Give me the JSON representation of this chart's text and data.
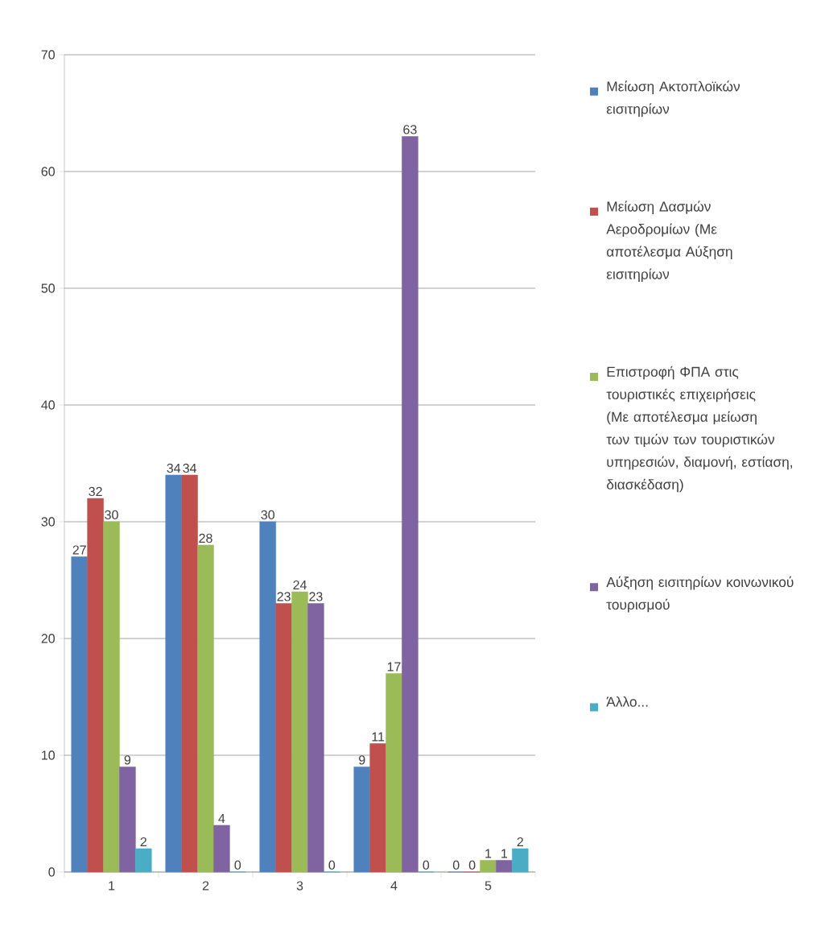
{
  "chart_data": {
    "type": "bar",
    "categories": [
      "1",
      "2",
      "3",
      "4",
      "5"
    ],
    "series": [
      {
        "name": "Μείωση Ακτοπλοϊκών εισιτηρίων",
        "color": "#4f81bd",
        "values": [
          27,
          34,
          30,
          9,
          0
        ]
      },
      {
        "name": "Μείωση Δασμών Αεροδρομίων (Με αποτέλεσμα Αύξηση εισιτηρίων",
        "color": "#c0504d",
        "values": [
          32,
          34,
          23,
          11,
          0
        ]
      },
      {
        "name": "Επιστροφή ΦΠΑ στις τουριστικές επιχειρήσεις (Με αποτέλεσμα μείωση των τιμών των τουριστικών υπηρεσιών, διαμονή, εστίαση, διασκέδαση)",
        "color": "#9bbb59",
        "values": [
          30,
          28,
          24,
          17,
          1
        ]
      },
      {
        "name": "Αύξηση εισιτηρίων κοινωνικού τουρισμού",
        "color": "#8064a2",
        "values": [
          9,
          4,
          23,
          63,
          1
        ]
      },
      {
        "name": "Άλλο...",
        "color": "#4bacc6",
        "values": [
          2,
          0,
          0,
          0,
          2
        ]
      }
    ],
    "ylim": [
      0,
      70
    ],
    "yticks": [
      0,
      10,
      20,
      30,
      40,
      50,
      60,
      70
    ],
    "grid": "y",
    "legend": "right",
    "data_labels": true
  }
}
